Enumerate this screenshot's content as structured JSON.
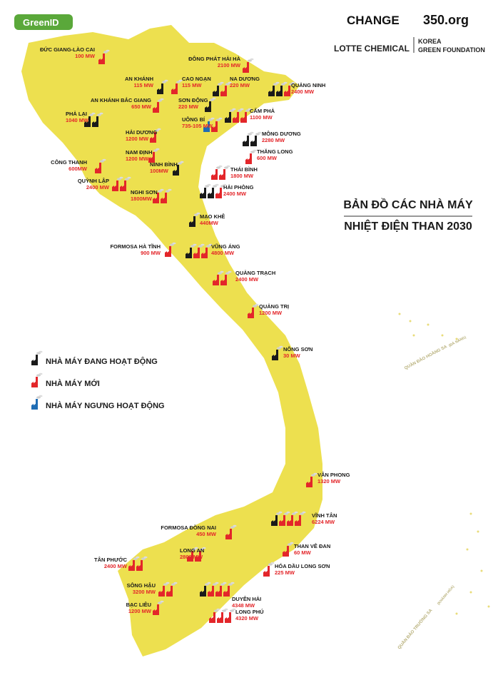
{
  "logos": {
    "greenid": "GreenID",
    "change": "CHANGE",
    "org350": "350.org",
    "lotte": "LOTTE CHEMICAL",
    "korea": "KOREA",
    "foundation": "GREEN FOUNDATION"
  },
  "title": [
    "BẢN ĐỒ CÁC NHÀ MÁY",
    "NHIỆT ĐIỆN THAN 2030"
  ],
  "legend": [
    {
      "label": "NHÀ MÁY ĐANG HOẠT ĐỘNG",
      "color": "#1a1a1a"
    },
    {
      "label": "NHÀ MÁY MỚI",
      "color": "#e3262a"
    },
    {
      "label": "NHÀ MÁY NGƯNG HOẠT ĐỘNG",
      "color": "#1f6db5"
    }
  ],
  "islands": [
    {
      "name": "QUẦN ĐẢO HOÀNG SA",
      "note": "(ĐÀ NẴNG)"
    },
    {
      "name": "QUẦN ĐẢO TRƯỜNG SA",
      "note": "(KHÁNH HÒA)"
    }
  ],
  "plants": [
    {
      "name": "ĐỨC GIANG-LÀO CAI",
      "capacity": "100 MW",
      "units": [
        1
      ]
    },
    {
      "name": "ĐÔNG PHÁT HẢI HÀ",
      "capacity": "2100 MW",
      "units": [
        1
      ]
    },
    {
      "name": "AN KHÁNH",
      "capacity": "115 MW",
      "units": [
        0
      ]
    },
    {
      "name": "CAO NGẠN",
      "capacity": "115 MW",
      "units": [
        1
      ]
    },
    {
      "name": "NA DƯƠNG",
      "capacity": "220 MW",
      "units": [
        0,
        1
      ]
    },
    {
      "name": "QUẢNG NINH",
      "capacity": "2400 MW",
      "units": [
        0,
        0,
        1
      ]
    },
    {
      "name": "AN KHÁNH BẮC GIANG",
      "capacity": "650 MW",
      "units": [
        1
      ]
    },
    {
      "name": "SƠN ĐỘNG",
      "capacity": "220 MW",
      "units": [
        0
      ]
    },
    {
      "name": "CẨM PHẢ",
      "capacity": "1100 MW",
      "units": [
        0,
        1,
        1
      ]
    },
    {
      "name": "PHẢ LẠI",
      "capacity": "1040 MW",
      "units": [
        0,
        0
      ]
    },
    {
      "name": "UÔNG BÍ",
      "capacity": "735-105 MW",
      "units": [
        2,
        1
      ]
    },
    {
      "name": "MÔNG DƯƠNG",
      "capacity": "2280 MW",
      "units": [
        0,
        0
      ]
    },
    {
      "name": "HẢI DƯƠNG",
      "capacity": "1200 MW",
      "units": [
        1
      ]
    },
    {
      "name": "THĂNG LONG",
      "capacity": "600 MW",
      "units": [
        1
      ]
    },
    {
      "name": "NAM ĐỊNH",
      "capacity": "1200 MW",
      "units": [
        1
      ]
    },
    {
      "name": "CÔNG THANH",
      "capacity": "600MW",
      "units": [
        1
      ]
    },
    {
      "name": "NINH BÌNH",
      "capacity": "100MW",
      "units": [
        0
      ]
    },
    {
      "name": "THÁI BÌNH",
      "capacity": "1800 MW",
      "units": [
        1,
        1
      ]
    },
    {
      "name": "QUỲNH LẬP",
      "capacity": "2400 MW",
      "units": [
        1,
        1
      ]
    },
    {
      "name": "HẢI PHÒNG",
      "capacity": "2400 MW",
      "units": [
        0,
        0,
        1
      ]
    },
    {
      "name": "NGHI SƠN",
      "capacity": "1800MW",
      "units": [
        1,
        1
      ]
    },
    {
      "name": "MẠO KHÊ",
      "capacity": "440MW",
      "units": [
        0
      ]
    },
    {
      "name": "FORMOSA HÀ TĨNH",
      "capacity": "900 MW",
      "units": [
        1
      ]
    },
    {
      "name": "VŨNG ÁNG",
      "capacity": "4800 MW",
      "units": [
        0,
        1,
        1
      ]
    },
    {
      "name": "QUẢNG TRẠCH",
      "capacity": "2400 MW",
      "units": [
        1,
        1
      ]
    },
    {
      "name": "QUẢNG TRỊ",
      "capacity": "1200 MW",
      "units": [
        1
      ]
    },
    {
      "name": "NÔNG SƠN",
      "capacity": "30 MW",
      "units": [
        0
      ]
    },
    {
      "name": "VÂN PHONG",
      "capacity": "1320 MW",
      "units": [
        1
      ]
    },
    {
      "name": "VĨNH TÂN",
      "capacity": "6224 MW",
      "units": [
        0,
        1,
        1,
        1
      ]
    },
    {
      "name": "FORMOSA ĐỒNG NAI",
      "capacity": "450 MW",
      "units": [
        1
      ]
    },
    {
      "name": "THAN VÊ ĐAN",
      "capacity": "60 MW",
      "units": [
        1
      ]
    },
    {
      "name": "LONG AN",
      "capacity": "2800 MW",
      "units": [
        1,
        1
      ]
    },
    {
      "name": "TÂN PHƯỚC",
      "capacity": "2400 MW",
      "units": [
        1,
        1
      ]
    },
    {
      "name": "HÓA DẦU LONG SƠN",
      "capacity": "225 MW",
      "units": [
        1
      ]
    },
    {
      "name": "SÔNG HẬU",
      "capacity": "3200 MW",
      "units": [
        1,
        1
      ]
    },
    {
      "name": "DUYÊN HẢI",
      "capacity": "4348 MW",
      "units": [
        0,
        1,
        1,
        1
      ]
    },
    {
      "name": "BẠC LIÊU",
      "capacity": "1200 MW",
      "units": [
        1
      ]
    },
    {
      "name": "LONG PHÚ",
      "capacity": "4320 MW",
      "units": [
        1,
        1,
        1
      ]
    }
  ]
}
